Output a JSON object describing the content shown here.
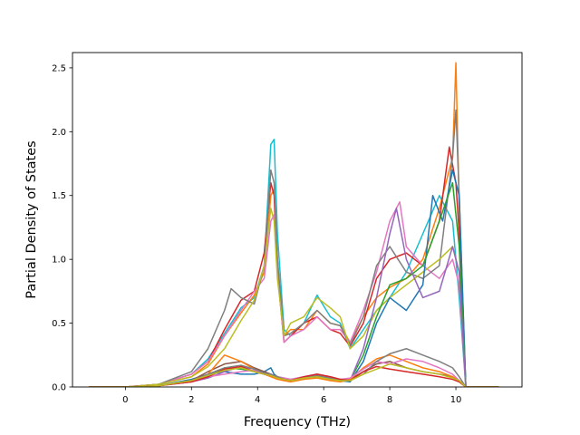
{
  "chart_data": {
    "type": "line",
    "title": "",
    "xlabel": "Frequency (THz)",
    "ylabel": "Partial Density of States",
    "xlim": [
      -1.6,
      12.0
    ],
    "ylim": [
      0.0,
      2.62
    ],
    "xticks": [
      0,
      2,
      4,
      6,
      8,
      10
    ],
    "yticks": [
      0.0,
      0.5,
      1.0,
      1.5,
      2.0,
      2.5
    ],
    "xtick_labels": [
      "0",
      "2",
      "4",
      "6",
      "8",
      "10"
    ],
    "ytick_labels": [
      "0.0",
      "0.5",
      "1.0",
      "1.5",
      "2.0",
      "2.5"
    ],
    "grid": false,
    "legend": "none",
    "palette": [
      "#1f77b4",
      "#ff7f0e",
      "#2ca02c",
      "#d62728",
      "#9467bd",
      "#8c564b",
      "#e377c2",
      "#7f7f7f",
      "#bcbd22",
      "#17becf"
    ],
    "series": [
      {
        "color": "#17becf",
        "x": [
          -1.1,
          0,
          1,
          2,
          2.5,
          3,
          3.5,
          3.9,
          4.2,
          4.4,
          4.5,
          4.6,
          4.8,
          5.0,
          5.4,
          5.8,
          6.2,
          6.5,
          6.8,
          7.2,
          7.6,
          8.0,
          8.5,
          9.0,
          9.5,
          9.9,
          10.1,
          10.3,
          11.3
        ],
        "y": [
          0,
          0,
          0.02,
          0.1,
          0.22,
          0.42,
          0.62,
          0.7,
          0.95,
          1.9,
          1.94,
          1.2,
          0.45,
          0.4,
          0.5,
          0.72,
          0.55,
          0.5,
          0.3,
          0.45,
          0.6,
          0.7,
          0.9,
          1.2,
          1.5,
          1.3,
          0.7,
          0,
          0
        ]
      },
      {
        "color": "#ff7f0e",
        "x": [
          -1.1,
          0,
          1,
          2,
          2.5,
          3,
          3.5,
          3.9,
          4.2,
          4.4,
          4.5,
          4.6,
          4.8,
          5.0,
          5.4,
          5.8,
          6.2,
          6.5,
          6.8,
          7.2,
          7.6,
          8.0,
          8.5,
          9.0,
          9.5,
          9.9,
          10.0,
          10.1,
          10.3,
          11.3
        ],
        "y": [
          0,
          0,
          0.02,
          0.08,
          0.18,
          0.4,
          0.58,
          0.72,
          0.9,
          1.5,
          1.55,
          1.0,
          0.4,
          0.45,
          0.45,
          0.6,
          0.5,
          0.48,
          0.35,
          0.55,
          0.7,
          0.78,
          0.85,
          1.0,
          1.4,
          1.8,
          2.54,
          1.4,
          0,
          0
        ]
      },
      {
        "color": "#d62728",
        "x": [
          -1.1,
          0,
          1,
          2,
          2.5,
          3,
          3.5,
          3.9,
          4.2,
          4.4,
          4.5,
          4.6,
          4.8,
          5.0,
          5.4,
          5.8,
          6.2,
          6.5,
          6.8,
          7.2,
          7.6,
          8.0,
          8.5,
          9.0,
          9.5,
          9.8,
          10.0,
          10.1,
          10.3,
          11.3
        ],
        "y": [
          0,
          0,
          0.02,
          0.1,
          0.2,
          0.45,
          0.68,
          0.75,
          1.05,
          1.6,
          1.5,
          0.9,
          0.35,
          0.4,
          0.5,
          0.55,
          0.45,
          0.42,
          0.32,
          0.5,
          0.85,
          1.0,
          1.05,
          0.95,
          1.3,
          1.88,
          1.6,
          1.2,
          0,
          0
        ]
      },
      {
        "color": "#e377c2",
        "x": [
          -1.1,
          0,
          1,
          2,
          2.5,
          3,
          3.5,
          3.9,
          4.2,
          4.4,
          4.5,
          4.6,
          4.8,
          5.0,
          5.4,
          5.8,
          6.2,
          6.5,
          6.8,
          7.2,
          7.6,
          8.0,
          8.3,
          8.5,
          9.0,
          9.5,
          9.9,
          10.1,
          10.3,
          11.3
        ],
        "y": [
          0,
          0,
          0.02,
          0.1,
          0.2,
          0.4,
          0.6,
          0.75,
          0.85,
          1.3,
          1.35,
          0.9,
          0.35,
          0.4,
          0.45,
          0.55,
          0.45,
          0.45,
          0.35,
          0.6,
          0.9,
          1.3,
          1.45,
          1.1,
          0.95,
          0.85,
          1.0,
          0.8,
          0,
          0
        ]
      },
      {
        "color": "#7f7f7f",
        "x": [
          -1.1,
          0,
          1,
          2,
          2.5,
          3,
          3.2,
          3.5,
          3.9,
          4.2,
          4.4,
          4.5,
          4.6,
          4.8,
          5.0,
          5.4,
          5.8,
          6.2,
          6.5,
          6.8,
          7.2,
          7.6,
          8.0,
          8.5,
          9.0,
          9.5,
          9.9,
          10.0,
          10.1,
          10.3,
          11.3
        ],
        "y": [
          0,
          0,
          0.02,
          0.12,
          0.3,
          0.6,
          0.77,
          0.7,
          0.65,
          0.95,
          1.7,
          1.6,
          1.0,
          0.4,
          0.42,
          0.5,
          0.6,
          0.5,
          0.48,
          0.33,
          0.55,
          0.95,
          1.1,
          0.9,
          0.85,
          0.95,
          1.8,
          2.17,
          1.5,
          0,
          0
        ]
      },
      {
        "color": "#bcbd22",
        "x": [
          -1.1,
          0,
          1,
          2,
          2.5,
          3,
          3.5,
          3.9,
          4.2,
          4.4,
          4.5,
          4.6,
          4.8,
          5.0,
          5.4,
          5.8,
          6.2,
          6.5,
          6.8,
          7.2,
          7.6,
          8.0,
          8.5,
          9.0,
          9.5,
          9.9,
          10.1,
          10.3,
          11.3
        ],
        "y": [
          0,
          0,
          0.02,
          0.08,
          0.16,
          0.3,
          0.52,
          0.68,
          0.95,
          1.4,
          1.3,
          0.85,
          0.4,
          0.5,
          0.55,
          0.7,
          0.62,
          0.55,
          0.3,
          0.4,
          0.6,
          0.7,
          0.8,
          0.9,
          1.0,
          1.1,
          0.9,
          0,
          0
        ]
      },
      {
        "color": "#1f77b4",
        "x": [
          -1.1,
          0,
          1,
          2,
          2.5,
          3,
          3.5,
          3.9,
          4.2,
          4.4,
          4.5,
          4.6,
          4.8,
          5.0,
          5.4,
          5.8,
          6.2,
          6.5,
          6.8,
          7.2,
          7.6,
          8.0,
          8.5,
          9.0,
          9.3,
          9.6,
          9.9,
          10.1,
          10.3,
          11.3
        ],
        "y": [
          0,
          0,
          0.01,
          0.06,
          0.1,
          0.12,
          0.1,
          0.1,
          0.12,
          0.15,
          0.1,
          0.08,
          0.06,
          0.05,
          0.06,
          0.08,
          0.06,
          0.05,
          0.04,
          0.2,
          0.5,
          0.7,
          0.6,
          0.8,
          1.5,
          1.3,
          1.7,
          1.5,
          0,
          0
        ]
      },
      {
        "color": "#2ca02c",
        "x": [
          -1.1,
          0,
          1,
          2,
          2.5,
          3,
          3.5,
          3.9,
          4.2,
          4.4,
          4.6,
          4.8,
          5.0,
          5.4,
          5.8,
          6.2,
          6.5,
          6.8,
          7.2,
          7.6,
          8.0,
          8.5,
          9.0,
          9.5,
          9.9,
          10.1,
          10.3,
          11.3
        ],
        "y": [
          0,
          0,
          0.01,
          0.05,
          0.08,
          0.15,
          0.14,
          0.12,
          0.1,
          0.09,
          0.07,
          0.06,
          0.05,
          0.07,
          0.09,
          0.07,
          0.06,
          0.05,
          0.25,
          0.55,
          0.8,
          0.85,
          0.95,
          1.3,
          1.6,
          1.1,
          0,
          0
        ]
      },
      {
        "color": "#9467bd",
        "x": [
          -1.1,
          0,
          1,
          2,
          2.5,
          3,
          3.5,
          3.9,
          4.2,
          4.4,
          4.6,
          4.8,
          5.0,
          5.4,
          5.8,
          6.2,
          6.5,
          6.8,
          7.2,
          7.6,
          8.0,
          8.2,
          8.5,
          9.0,
          9.5,
          9.9,
          10.1,
          10.3,
          11.3
        ],
        "y": [
          0,
          0,
          0.01,
          0.04,
          0.07,
          0.12,
          0.16,
          0.14,
          0.12,
          0.1,
          0.08,
          0.07,
          0.06,
          0.08,
          0.1,
          0.08,
          0.06,
          0.05,
          0.3,
          0.7,
          1.2,
          1.4,
          1.0,
          0.7,
          0.75,
          1.1,
          0.9,
          0,
          0
        ]
      },
      {
        "color": "#8c564b",
        "x": [
          -1.1,
          0,
          1,
          2,
          2.5,
          3,
          3.5,
          3.9,
          4.2,
          4.4,
          4.6,
          4.8,
          5.0,
          5.4,
          5.8,
          6.2,
          6.5,
          6.8,
          7.2,
          7.6,
          8.0,
          8.5,
          9.0,
          9.5,
          9.9,
          10.1,
          10.3,
          11.3
        ],
        "y": [
          0,
          0,
          0.01,
          0.05,
          0.12,
          0.18,
          0.2,
          0.15,
          0.12,
          0.1,
          0.08,
          0.06,
          0.05,
          0.07,
          0.08,
          0.06,
          0.05,
          0.06,
          0.12,
          0.18,
          0.2,
          0.15,
          0.12,
          0.1,
          0.08,
          0.05,
          0,
          0
        ]
      },
      {
        "color": "#ff7f0e",
        "x": [
          -1.1,
          0,
          1,
          2,
          2.5,
          3,
          3.5,
          3.9,
          4.2,
          4.4,
          4.6,
          4.8,
          5.0,
          5.4,
          5.8,
          6.2,
          6.5,
          6.8,
          7.2,
          7.6,
          8.0,
          8.5,
          9.0,
          9.5,
          9.9,
          10.1,
          10.3,
          11.3
        ],
        "y": [
          0,
          0,
          0.01,
          0.05,
          0.1,
          0.25,
          0.2,
          0.14,
          0.1,
          0.08,
          0.06,
          0.05,
          0.04,
          0.06,
          0.07,
          0.05,
          0.04,
          0.06,
          0.15,
          0.22,
          0.25,
          0.2,
          0.15,
          0.12,
          0.08,
          0.05,
          0,
          0
        ]
      },
      {
        "color": "#e377c2",
        "x": [
          -1.1,
          0,
          1,
          2,
          2.5,
          3,
          3.5,
          3.9,
          4.2,
          4.4,
          4.6,
          4.8,
          5.0,
          5.4,
          5.8,
          6.2,
          6.5,
          6.8,
          7.2,
          7.6,
          8.0,
          8.5,
          9.0,
          9.5,
          9.9,
          10.1,
          10.3,
          11.3
        ],
        "y": [
          0,
          0,
          0.01,
          0.04,
          0.08,
          0.1,
          0.12,
          0.13,
          0.1,
          0.09,
          0.08,
          0.07,
          0.06,
          0.08,
          0.1,
          0.08,
          0.06,
          0.07,
          0.14,
          0.2,
          0.18,
          0.22,
          0.2,
          0.15,
          0.1,
          0.05,
          0,
          0
        ]
      },
      {
        "color": "#7f7f7f",
        "x": [
          -1.1,
          0,
          1,
          2,
          2.5,
          3,
          3.5,
          3.9,
          4.2,
          4.4,
          4.6,
          4.8,
          5.0,
          5.4,
          5.8,
          6.2,
          6.5,
          6.8,
          7.2,
          7.6,
          8.0,
          8.5,
          9.0,
          9.5,
          9.9,
          10.1,
          10.3,
          11.3
        ],
        "y": [
          0,
          0,
          0.01,
          0.05,
          0.1,
          0.15,
          0.17,
          0.14,
          0.11,
          0.1,
          0.08,
          0.06,
          0.05,
          0.07,
          0.09,
          0.07,
          0.05,
          0.05,
          0.1,
          0.2,
          0.26,
          0.3,
          0.25,
          0.2,
          0.15,
          0.08,
          0,
          0
        ]
      },
      {
        "color": "#d62728",
        "x": [
          -1.1,
          0,
          1,
          2,
          2.5,
          3,
          3.5,
          3.9,
          4.2,
          4.4,
          4.6,
          4.8,
          5.0,
          5.4,
          5.8,
          6.2,
          6.5,
          6.8,
          7.2,
          7.6,
          8.0,
          8.5,
          9.0,
          9.5,
          9.9,
          10.1,
          10.3,
          11.3
        ],
        "y": [
          0,
          0,
          0.01,
          0.04,
          0.08,
          0.14,
          0.16,
          0.12,
          0.1,
          0.09,
          0.07,
          0.06,
          0.05,
          0.08,
          0.1,
          0.08,
          0.06,
          0.05,
          0.12,
          0.16,
          0.14,
          0.12,
          0.1,
          0.08,
          0.06,
          0.04,
          0,
          0
        ]
      },
      {
        "color": "#bcbd22",
        "x": [
          -1.1,
          0,
          1,
          2,
          2.5,
          3,
          3.5,
          3.9,
          4.2,
          4.4,
          4.6,
          4.8,
          5.0,
          5.4,
          5.8,
          6.2,
          6.5,
          6.8,
          7.2,
          7.6,
          8.0,
          8.5,
          9.0,
          9.5,
          9.9,
          10.1,
          10.3,
          11.3
        ],
        "y": [
          0,
          0,
          0.01,
          0.05,
          0.09,
          0.13,
          0.15,
          0.12,
          0.1,
          0.09,
          0.07,
          0.06,
          0.05,
          0.07,
          0.08,
          0.06,
          0.05,
          0.05,
          0.1,
          0.14,
          0.18,
          0.15,
          0.12,
          0.1,
          0.07,
          0.05,
          0,
          0
        ]
      }
    ]
  }
}
